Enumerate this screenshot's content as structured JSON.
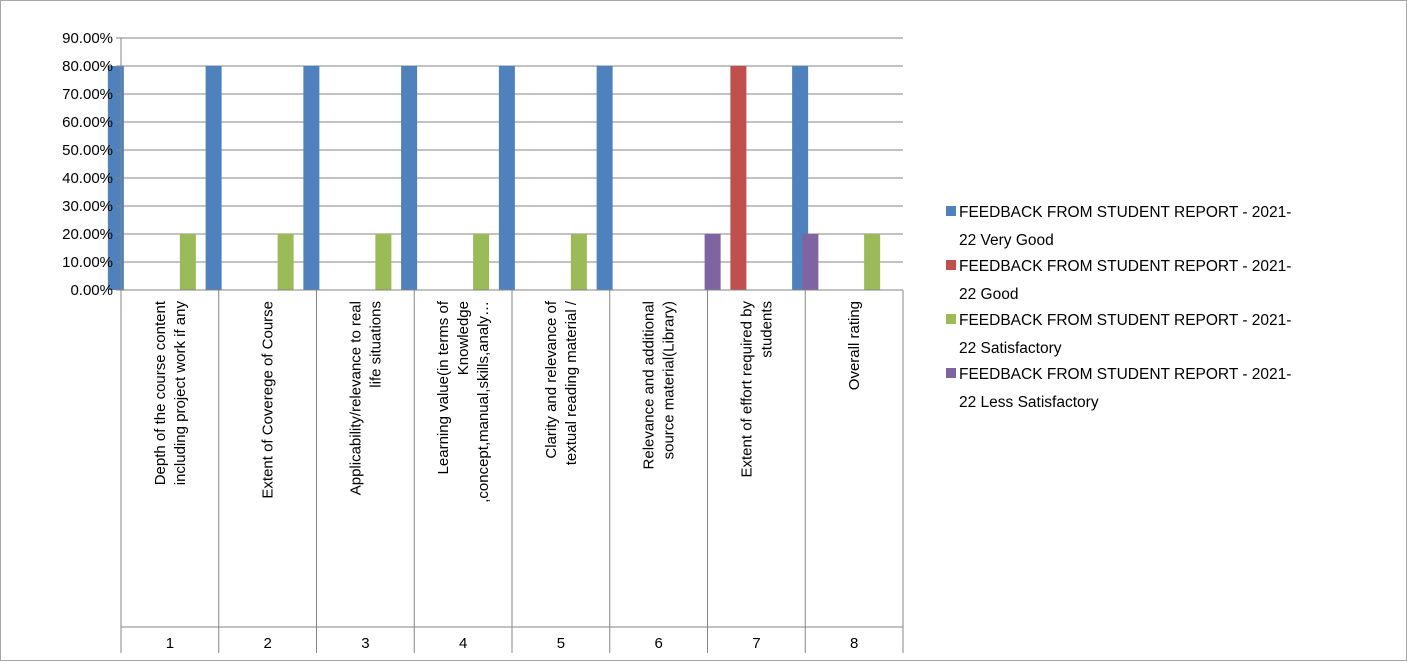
{
  "chart_data": {
    "type": "bar",
    "y_tick_labels": [
      "0.00%",
      "10.00%",
      "20.00%",
      "30.00%",
      "40.00%",
      "50.00%",
      "60.00%",
      "70.00%",
      "80.00%",
      "90.00%"
    ],
    "ylim": [
      0,
      90
    ],
    "grid": true,
    "legend_position": "right",
    "categories": [
      {
        "number": "1",
        "label_lines": [
          "Depth of the course content",
          "including project work if any"
        ]
      },
      {
        "number": "2",
        "label_lines": [
          "Extent of Coverege of Course"
        ]
      },
      {
        "number": "3",
        "label_lines": [
          "Applicability/relevance to real",
          "life situations"
        ]
      },
      {
        "number": "4",
        "label_lines": [
          "Learning value(in terms of",
          "Knowledge",
          ",concept,manual,skills,analy…"
        ]
      },
      {
        "number": "5",
        "label_lines": [
          "Clarity and relevance of",
          "textual reading material /"
        ]
      },
      {
        "number": "6",
        "label_lines": [
          "Relevance and additional",
          "source material(Library)"
        ]
      },
      {
        "number": "7",
        "label_lines": [
          "Extent of effort required by",
          "students"
        ]
      },
      {
        "number": "8",
        "label_lines": [
          "Overall rating"
        ]
      }
    ],
    "series": [
      {
        "name": "FEEDBACK FROM STUDENT REPORT - 2021-22 Very Good",
        "legend_lines": [
          "FEEDBACK FROM STUDENT REPORT - 2021-",
          "22 Very Good"
        ],
        "color": "#4f81bd",
        "values": [
          80,
          80,
          80,
          80,
          80,
          80,
          0,
          80
        ]
      },
      {
        "name": "FEEDBACK FROM STUDENT REPORT - 2021-22 Good",
        "legend_lines": [
          "FEEDBACK FROM STUDENT REPORT - 2021-",
          "22 Good"
        ],
        "color": "#c0504d",
        "values": [
          0,
          0,
          0,
          0,
          0,
          0,
          80,
          0
        ]
      },
      {
        "name": "FEEDBACK FROM STUDENT REPORT - 2021-22 Satisfactory",
        "legend_lines": [
          "FEEDBACK FROM STUDENT REPORT - 2021-",
          "22 Satisfactory"
        ],
        "color": "#9bbb59",
        "values": [
          20,
          20,
          20,
          20,
          20,
          0,
          0,
          20
        ]
      },
      {
        "name": "FEEDBACK FROM STUDENT REPORT - 2021-22 Less Satisfactory",
        "legend_lines": [
          "FEEDBACK FROM STUDENT REPORT - 2021-",
          "22 Less Satisfactory"
        ],
        "color": "#8064a2",
        "values": [
          0,
          0,
          0,
          0,
          0,
          20,
          20,
          0
        ]
      }
    ]
  }
}
